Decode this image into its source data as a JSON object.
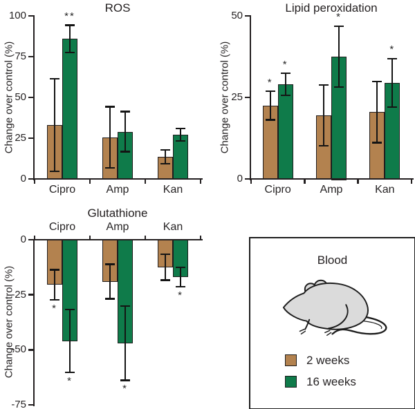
{
  "chart_data": [
    {
      "id": "ros",
      "type": "bar",
      "title": "ROS",
      "ylabel": "Change over control (%)",
      "categories": [
        "Cipro",
        "Amp",
        "Kan"
      ],
      "ylim": [
        0,
        100
      ],
      "yticks": [
        100,
        75,
        50,
        25,
        0
      ],
      "grid": false,
      "legend_position": "none",
      "series": [
        {
          "name": "2 weeks",
          "color": "#b3824f",
          "values": [
            33,
            25.5,
            13.5
          ],
          "errors": [
            28.5,
            19,
            4.5
          ],
          "sig": [
            "",
            "",
            ""
          ]
        },
        {
          "name": "16 weeks",
          "color": "#0f7b4a",
          "values": [
            86,
            29,
            27
          ],
          "errors": [
            8.5,
            12.5,
            4
          ],
          "sig": [
            "**",
            "",
            ""
          ]
        }
      ]
    },
    {
      "id": "lipid",
      "type": "bar",
      "title": "Lipid peroxidation",
      "ylabel": "Change over control (%)",
      "categories": [
        "Cipro",
        "Amp",
        "Kan"
      ],
      "ylim": [
        0,
        50
      ],
      "yticks": [
        50,
        25,
        0
      ],
      "grid": false,
      "legend_position": "none",
      "series": [
        {
          "name": "2 weeks",
          "color": "#b3824f",
          "values": [
            22.5,
            19.5,
            20.5
          ],
          "errors": [
            4.5,
            9.5,
            9.5
          ],
          "sig": [
            "*",
            "",
            ""
          ]
        },
        {
          "name": "16 weeks",
          "color": "#0f7b4a",
          "values": [
            29,
            37.5,
            29.5
          ],
          "errors": [
            3.5,
            9.5,
            7.5
          ],
          "sig": [
            "*",
            "*",
            "*"
          ]
        }
      ]
    },
    {
      "id": "glutathione",
      "type": "bar",
      "title": "Glutathione",
      "ylabel": "Change over control (%)",
      "categories": [
        "Cipro",
        "Amp",
        "Kan"
      ],
      "ylim": [
        -75,
        0
      ],
      "yticks": [
        0,
        -25,
        -50,
        -75
      ],
      "grid": false,
      "legend_position": "none",
      "series": [
        {
          "name": "2 weeks",
          "color": "#b3824f",
          "values": [
            -20.5,
            -19,
            -12.5
          ],
          "errors": [
            7,
            8,
            6
          ],
          "sig": [
            "*",
            "",
            ""
          ]
        },
        {
          "name": "16 weeks",
          "color": "#0f7b4a",
          "values": [
            -46,
            -47,
            -17
          ],
          "errors": [
            14.5,
            17,
            4.5
          ],
          "sig": [
            "*",
            "*",
            "*"
          ]
        }
      ]
    }
  ],
  "legend_panel": {
    "title": "Blood",
    "illustration": "mouse-icon",
    "items": [
      {
        "label": "2 weeks",
        "color": "#b3824f"
      },
      {
        "label": "16 weeks",
        "color": "#0f7b4a"
      }
    ]
  },
  "colors": {
    "axis": "#231f20",
    "error_bar": "#141414",
    "two_weeks": "#b3824f",
    "sixteen_weeks": "#0f7b4a"
  }
}
